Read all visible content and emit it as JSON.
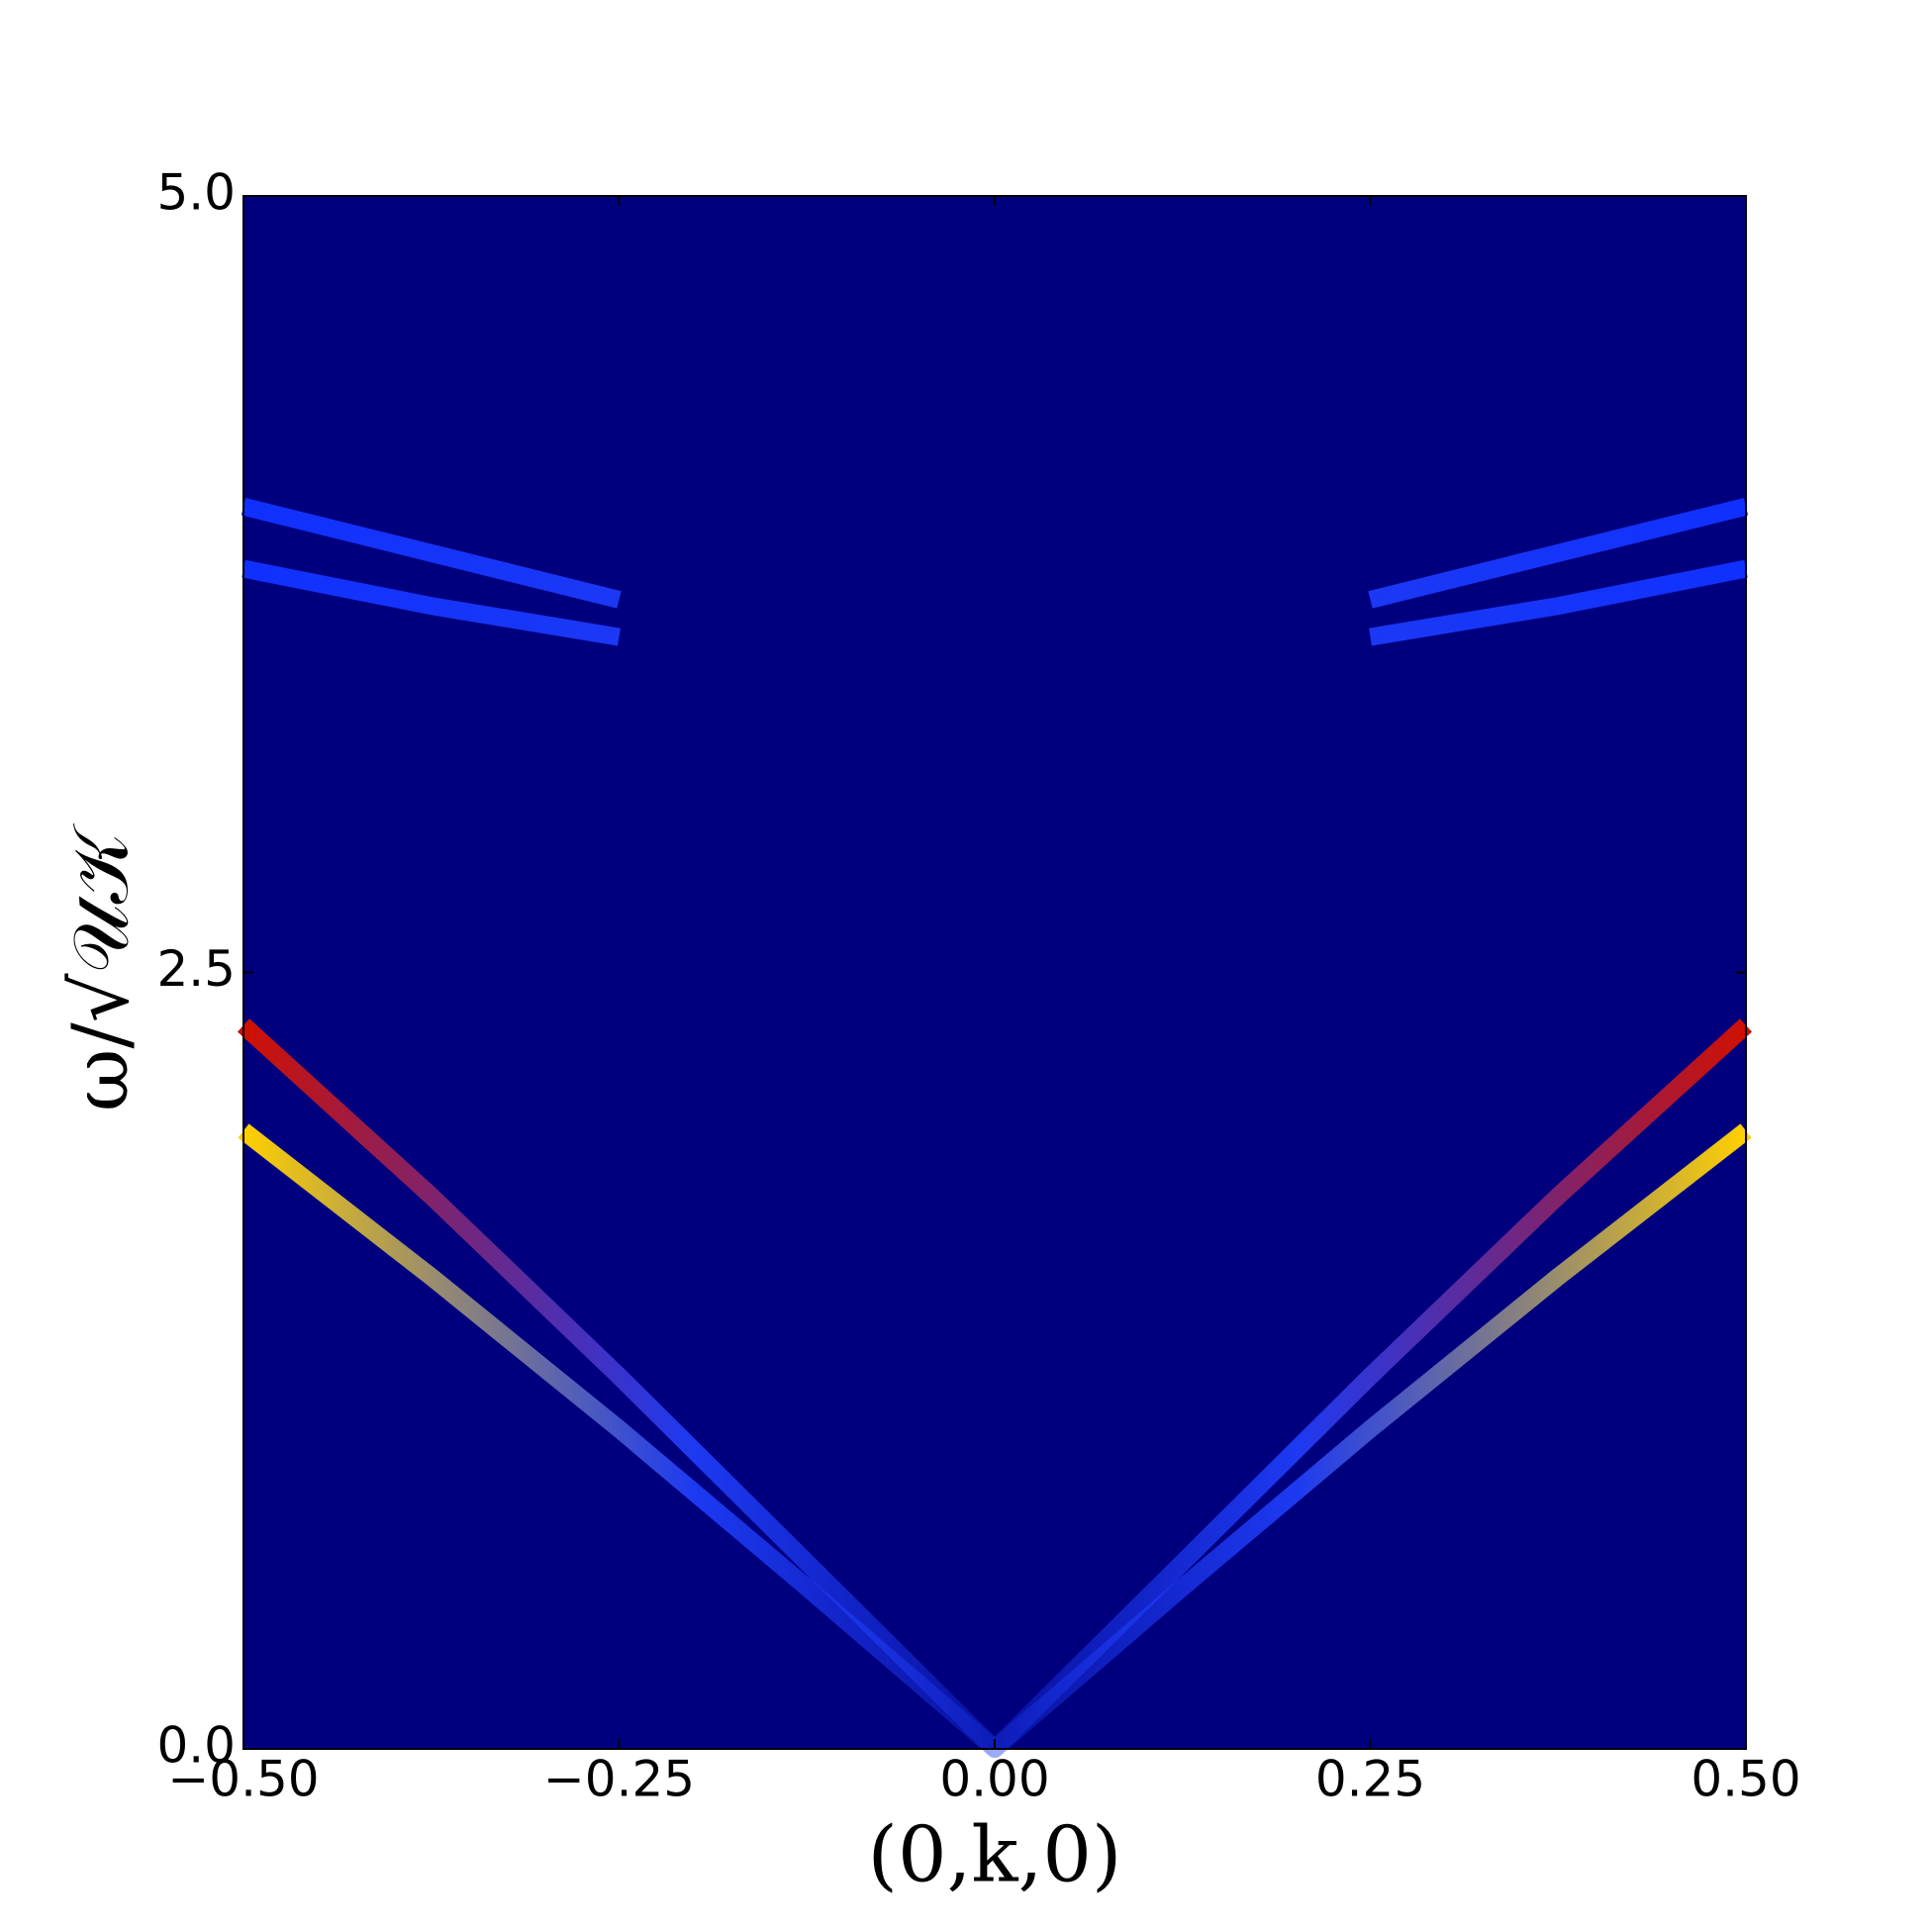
{
  "chart_data": {
    "type": "line",
    "xlabel": "(0,k,0)",
    "ylabel": "ω/√𝒰𝒦",
    "background": "#00007f",
    "x": [
      -0.5,
      -0.375,
      -0.25,
      -0.125,
      0,
      0.125,
      0.25,
      0.375,
      0.5
    ],
    "series": [
      {
        "color": "#d01000",
        "values": [
          2.33,
          1.78,
          1.2,
          0.6,
          0,
          0.6,
          1.2,
          1.78,
          2.33
        ]
      },
      {
        "color": "#ffd000",
        "values": [
          1.99,
          1.52,
          1.03,
          0.52,
          0,
          0.52,
          1.03,
          1.52,
          1.99
        ]
      },
      {
        "color": "#1030ff",
        "values": [
          4.0,
          3.85,
          3.7,
          null,
          null,
          null,
          3.7,
          3.85,
          4.0
        ]
      },
      {
        "color": "#1030ff",
        "values": [
          3.8,
          3.68,
          3.58,
          null,
          null,
          null,
          3.58,
          3.68,
          3.8
        ]
      }
    ],
    "xlim": [
      -0.5,
      0.5
    ],
    "ylim": [
      0,
      5
    ],
    "xticks": [
      {
        "value": -0.5,
        "label": "−0.50"
      },
      {
        "value": -0.25,
        "label": "−0.25"
      },
      {
        "value": 0,
        "label": "0.00"
      },
      0.25,
      {
        "value": 0.5,
        "label": "0.50"
      }
    ],
    "yticks": [
      {
        "value": 0,
        "label": "0.0"
      },
      2.5,
      {
        "value": 5,
        "label": "5.0"
      }
    ],
    "grid": false
  }
}
